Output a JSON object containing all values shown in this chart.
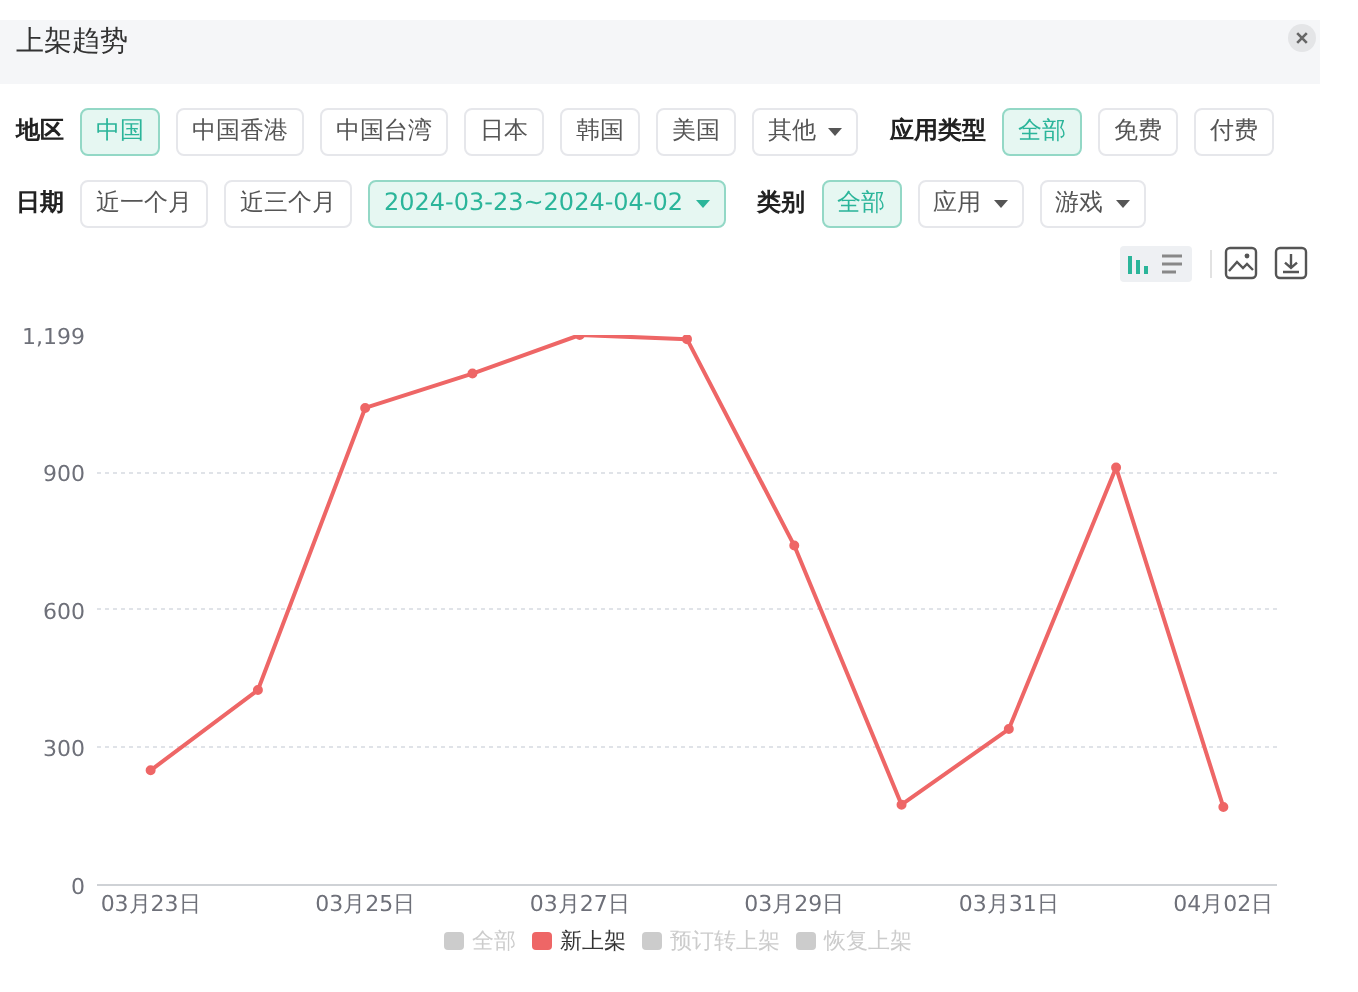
{
  "chart_data": {
    "type": "line",
    "title": "上架趋势",
    "annotations": [
      "地区",
      "中国",
      "中国香港",
      "中国台湾",
      "日本",
      "韩国",
      "美国",
      "其他",
      "应用类型",
      "全部",
      "免费",
      "付费",
      "日期",
      "近一个月",
      "近三个月",
      "2024-03-23~2024-04-02",
      "类别",
      "全部",
      "应用",
      "游戏"
    ],
    "categories": [
      "03月23日",
      null,
      "03月25日",
      null,
      "03月27日",
      null,
      "03月29日",
      null,
      "03月31日",
      null,
      "04月02日"
    ],
    "series": [
      {
        "name": "全部",
        "color": "#cccccc",
        "values": [
          null,
          null,
          null,
          null,
          null,
          null,
          null,
          null,
          null,
          null,
          null
        ]
      },
      {
        "name": "新上架",
        "color": "#ee6666",
        "values": [
          250,
          425,
          1040,
          1115,
          1199,
          1190,
          740,
          175,
          340,
          910,
          170
        ]
      },
      {
        "name": "预订转上架",
        "color": "#cccccc",
        "values": [
          null,
          null,
          null,
          null,
          null,
          null,
          null,
          null,
          null,
          null,
          null
        ]
      },
      {
        "name": "恢复上架",
        "color": "#cccccc",
        "values": [
          null,
          null,
          null,
          null,
          null,
          null,
          null,
          null,
          null,
          null,
          null
        ]
      }
    ],
    "ylim": [
      0,
      1199
    ],
    "yticks": [
      0,
      300,
      600,
      900,
      {
        "value": 1199,
        "label": "1,199"
      }
    ],
    "grid": "y",
    "legend": "bottom",
    "marker": "circle",
    "line_style": "solid"
  }
}
